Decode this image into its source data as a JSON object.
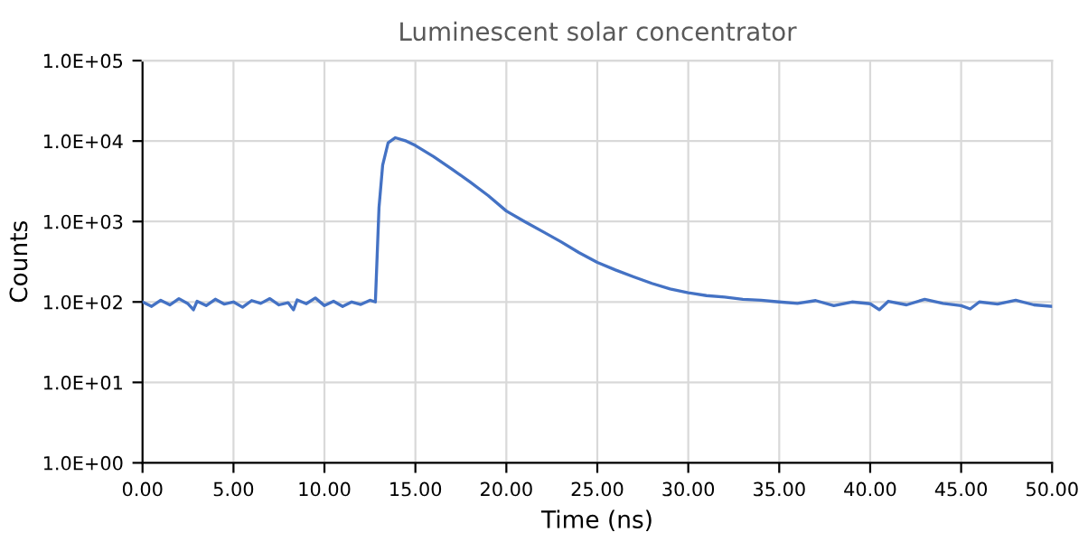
{
  "chart_data": {
    "type": "line",
    "title": "Luminescent solar concentrator",
    "xlabel": "Time (ns)",
    "ylabel": "Counts",
    "log": "y",
    "grid": true,
    "marker": "none",
    "line_style": "solid",
    "xlim": [
      0,
      50
    ],
    "xticks": [
      {
        "value": 0,
        "label": "0.00"
      },
      {
        "value": 5,
        "label": "5.00"
      },
      {
        "value": 10,
        "label": "10.00"
      },
      {
        "value": 15,
        "label": "15.00"
      },
      {
        "value": 20,
        "label": "20.00"
      },
      {
        "value": 25,
        "label": "25.00"
      },
      {
        "value": 30,
        "label": "30.00"
      },
      {
        "value": 35,
        "label": "35.00"
      },
      {
        "value": 40,
        "label": "40.00"
      },
      {
        "value": 45,
        "label": "45.00"
      },
      {
        "value": 50,
        "label": "50.00"
      }
    ],
    "ylim": [
      1,
      100000
    ],
    "yticks": [
      {
        "value": 1,
        "label": "1.0E+00"
      },
      {
        "value": 10,
        "label": "1.0E+01"
      },
      {
        "value": 100,
        "label": "1.0E+02"
      },
      {
        "value": 1000,
        "label": "1.0E+03"
      },
      {
        "value": 10000,
        "label": "1.0E+04"
      },
      {
        "value": 100000,
        "label": "1.0E+05"
      }
    ],
    "series": [
      {
        "color": "#4472c4",
        "x": [
          0,
          0.5,
          1,
          1.5,
          2,
          2.5,
          2.8,
          3,
          3.5,
          4,
          4.5,
          5,
          5.5,
          6,
          6.5,
          7,
          7.5,
          8,
          8.3,
          8.5,
          9,
          9.5,
          10,
          10.5,
          11,
          11.5,
          12,
          12.5,
          12.8,
          13.0,
          13.2,
          13.5,
          13.9,
          14.5,
          15,
          16,
          17,
          18,
          19,
          20,
          21,
          22,
          23,
          24,
          25,
          26,
          27,
          28,
          29,
          30,
          31,
          32,
          33,
          34,
          35,
          36,
          37,
          38,
          39,
          40,
          40.5,
          41,
          42,
          43,
          44,
          45,
          45.5,
          46,
          47,
          48,
          49,
          50
        ],
        "values": [
          100,
          88,
          105,
          92,
          110,
          95,
          80,
          102,
          90,
          108,
          94,
          100,
          86,
          104,
          96,
          110,
          92,
          98,
          80,
          106,
          95,
          112,
          90,
          102,
          88,
          100,
          93,
          105,
          100,
          1500,
          5000,
          9500,
          11000,
          10000,
          8800,
          6400,
          4500,
          3100,
          2100,
          1350,
          1000,
          750,
          560,
          410,
          310,
          250,
          205,
          170,
          145,
          130,
          120,
          115,
          108,
          105,
          100,
          96,
          104,
          90,
          100,
          95,
          80,
          102,
          92,
          108,
          96,
          90,
          82,
          100,
          94,
          105,
          92,
          88
        ]
      }
    ]
  }
}
